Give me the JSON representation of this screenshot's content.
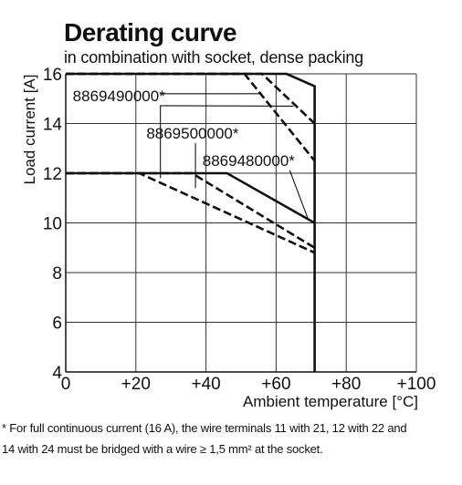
{
  "title": "Derating curve",
  "subtitle": "in combination with socket, dense packing",
  "footnote": {
    "line1": "* For full continuous current (16 A), the wire terminals 11 with 21, 12 with 22 and",
    "line2": "14 with 24 must be bridged with a wire ≥ 1,5 mm² at the socket."
  },
  "chart_data": {
    "type": "line",
    "xlabel": "Ambient temperature [°C]",
    "ylabel": "Load current [A]",
    "xlim": [
      0,
      100
    ],
    "ylim": [
      4,
      16
    ],
    "xticks": [
      {
        "value": 0,
        "label": "0"
      },
      {
        "value": 20,
        "label": "+20"
      },
      {
        "value": 40,
        "label": "+40"
      },
      {
        "value": 60,
        "label": "+60"
      },
      {
        "value": 80,
        "label": "+80"
      },
      {
        "value": 100,
        "label": "+100"
      }
    ],
    "yticks": [
      {
        "value": 4,
        "label": "4"
      },
      {
        "value": 6,
        "label": "6"
      },
      {
        "value": 8,
        "label": "8"
      },
      {
        "value": 10,
        "label": "10"
      },
      {
        "value": 12,
        "label": "12"
      },
      {
        "value": 14,
        "label": "14"
      },
      {
        "value": 16,
        "label": "16"
      }
    ],
    "grid": true,
    "series": [
      {
        "style": "solid",
        "points": [
          [
            0,
            16
          ],
          [
            63,
            16
          ],
          [
            71,
            15.5
          ],
          [
            71,
            4
          ]
        ]
      },
      {
        "style": "dashed",
        "points": [
          [
            0,
            16
          ],
          [
            56,
            16
          ],
          [
            71,
            14
          ]
        ]
      },
      {
        "style": "dashed",
        "points": [
          [
            0,
            16
          ],
          [
            51,
            16
          ],
          [
            71,
            12.5
          ]
        ]
      },
      {
        "style": "solid",
        "points": [
          [
            0,
            12
          ],
          [
            46,
            12
          ],
          [
            71,
            10
          ]
        ]
      },
      {
        "style": "dashed",
        "points": [
          [
            0,
            12
          ],
          [
            36,
            12
          ],
          [
            71,
            9
          ]
        ]
      },
      {
        "style": "dashed",
        "points": [
          [
            0,
            12
          ],
          [
            21,
            12
          ],
          [
            71,
            8.8
          ]
        ]
      }
    ],
    "annotations": [
      {
        "label": "8869490000*",
        "x": 2,
        "y": 14.9,
        "targets": [
          [
            27,
            11.8
          ],
          [
            56,
            15.2
          ],
          [
            65,
            14.7
          ]
        ]
      },
      {
        "label": "8869500000*",
        "x": 23,
        "y": 13.4,
        "targets": [
          [
            37,
            11.4
          ]
        ]
      },
      {
        "label": "8869480000*",
        "x": 39,
        "y": 12.3,
        "targets": [
          [
            69,
            10.2
          ]
        ]
      }
    ]
  }
}
